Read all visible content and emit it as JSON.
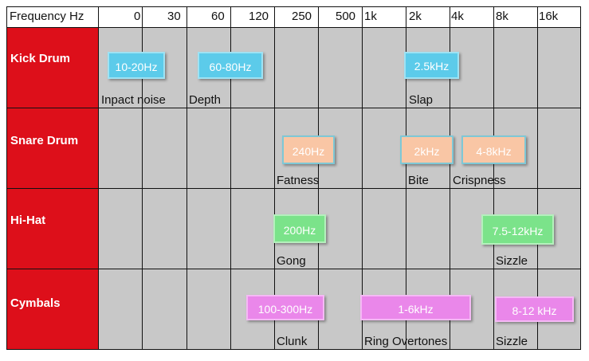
{
  "header": {
    "title": "Frequency Hz",
    "ticks": [
      "0",
      "30",
      "60",
      "120",
      "250",
      "500",
      "1k",
      "2k",
      "4k",
      "8k",
      "16k"
    ]
  },
  "rows": [
    {
      "name": "Kick Drum",
      "boxes": [
        {
          "label": "10-20Hz",
          "color": "cyan"
        },
        {
          "label": "60-80Hz",
          "color": "cyan"
        },
        {
          "label": "2.5kHz",
          "color": "cyan"
        }
      ],
      "notes": [
        "Inpact noise",
        "Depth",
        "Slap"
      ]
    },
    {
      "name": "Snare Drum",
      "boxes": [
        {
          "label": "240Hz",
          "color": "peach"
        },
        {
          "label": "2kHz",
          "color": "peach"
        },
        {
          "label": "4-8kHz",
          "color": "peach"
        }
      ],
      "notes": [
        "Fatness",
        "Bite",
        "Crispness"
      ]
    },
    {
      "name": "Hi-Hat",
      "boxes": [
        {
          "label": "200Hz",
          "color": "green"
        },
        {
          "label": "7.5-12kHz",
          "color": "green"
        }
      ],
      "notes": [
        "Gong",
        "Sizzle"
      ]
    },
    {
      "name": "Cymbals",
      "boxes": [
        {
          "label": "100-300Hz",
          "color": "pink"
        },
        {
          "label": "1-6kHz",
          "color": "pink"
        },
        {
          "label": "8-12 kHz",
          "color": "pink"
        }
      ],
      "notes": [
        "Clunk",
        "Ring Overtones",
        "Sizzle"
      ]
    }
  ],
  "colors": {
    "row_header": "#dd0f1a",
    "grid_bg": "#c8c8c8",
    "cyan": "#5ccbea",
    "peach": "#f9c6a5",
    "green": "#7be38a",
    "pink": "#ea87ea"
  }
}
